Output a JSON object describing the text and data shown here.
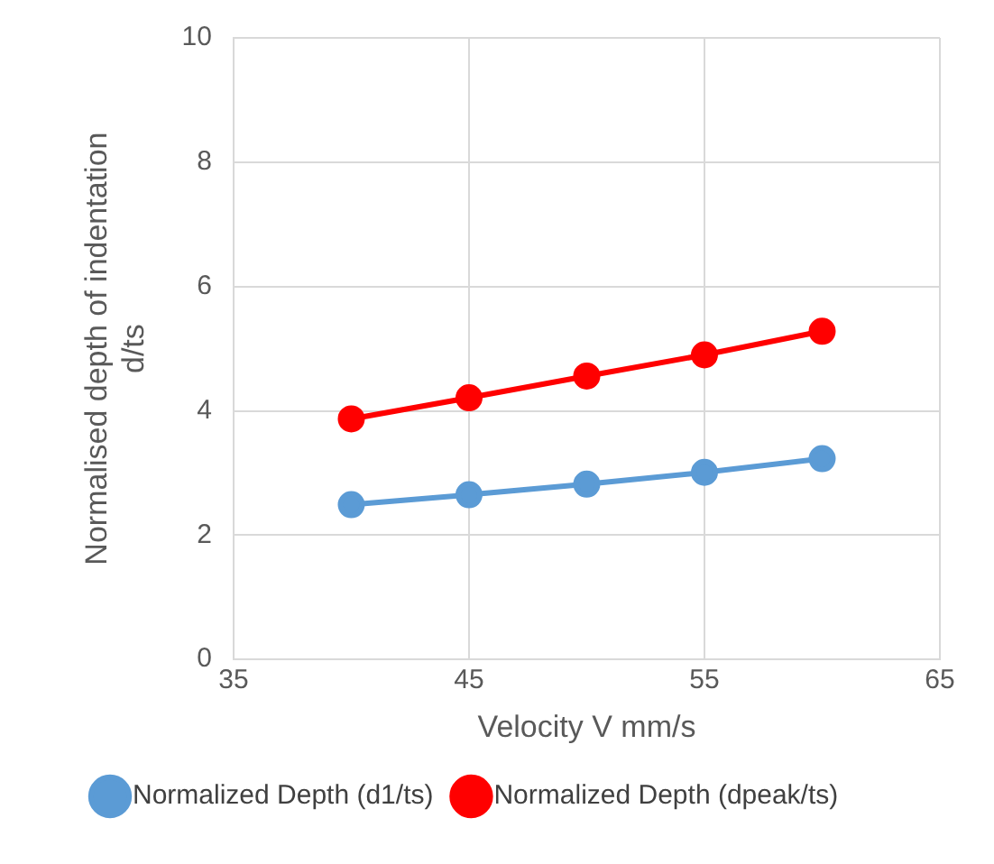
{
  "chart_data": {
    "type": "line",
    "xlabel": "Velocity V mm/s",
    "ylabel": "Normalised depth of indentation d/ts",
    "x": [
      40,
      45,
      50,
      55,
      60
    ],
    "series": [
      {
        "name": "Normalized Depth (d1/ts)",
        "color": "#5b9bd5",
        "values": [
          2.49,
          2.65,
          2.82,
          3.01,
          3.23
        ]
      },
      {
        "name": "Normalized Depth (dpeak/ts)",
        "color": "#ff0000",
        "values": [
          3.87,
          4.21,
          4.56,
          4.9,
          5.28
        ]
      }
    ],
    "xlim": [
      35,
      65
    ],
    "xticks": [
      35,
      45,
      55,
      65
    ],
    "ylim": [
      0,
      10
    ],
    "yticks": [
      0,
      2,
      4,
      6,
      8,
      10
    ],
    "grid": true,
    "legend": "bottom",
    "marker": "circle",
    "line_style": "solid"
  }
}
